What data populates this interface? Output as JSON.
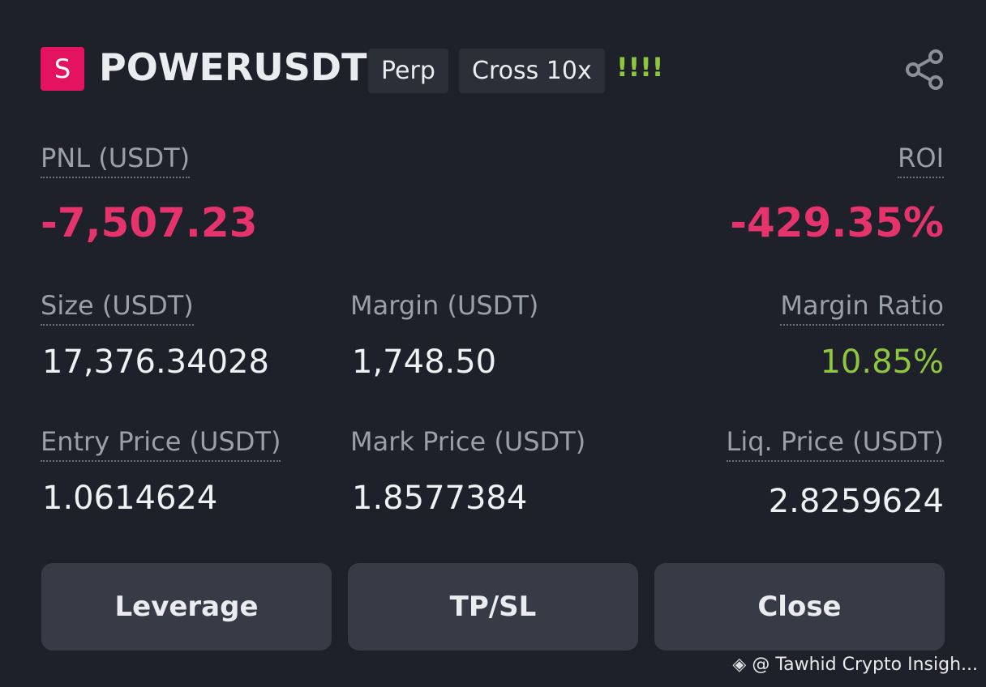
{
  "header": {
    "badge": "S",
    "symbol": "POWERUSDT",
    "tags": [
      "Perp",
      "Cross 10x"
    ],
    "warning": "!!!!"
  },
  "pnl": {
    "label": "PNL (USDT)",
    "value": "-7,507.23"
  },
  "roi": {
    "label": "ROI",
    "value": "-429.35%"
  },
  "fields": [
    {
      "label": "Size (USDT)",
      "value": "17,376.34028"
    },
    {
      "label": "Margin (USDT)",
      "value": "1,748.50"
    },
    {
      "label": "Margin Ratio",
      "value": "10.85%"
    },
    {
      "label": "Entry Price (USDT)",
      "value": "1.0614624"
    },
    {
      "label": "Mark Price (USDT)",
      "value": "1.8577384"
    },
    {
      "label": "Liq. Price (USDT)",
      "value": "2.8259624"
    }
  ],
  "buttons": [
    "Leverage",
    "TP/SL",
    "Close"
  ],
  "watermark": "@ Tawhid Crypto Insigh..."
}
